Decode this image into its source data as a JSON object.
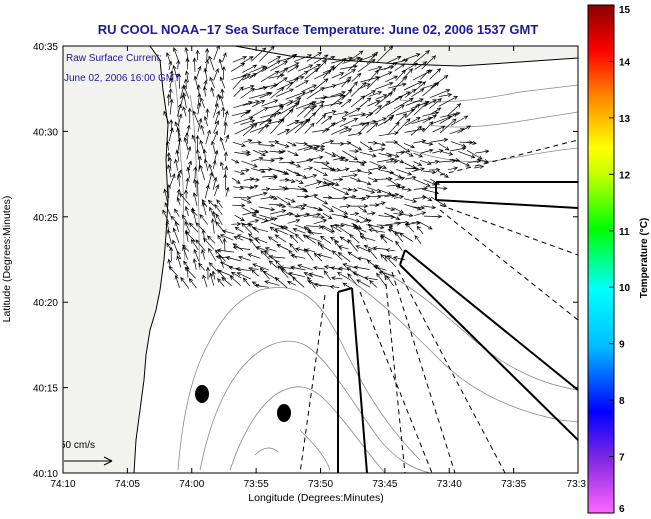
{
  "title": "RU COOL  NOAA−17  Sea Surface Temperature:  June 02, 2006 1537 GMT",
  "annotation": {
    "line1": "Raw Surface Current:",
    "line2": "June 02, 2006 16:00 GMT"
  },
  "scale": {
    "label": "50 cm/s"
  },
  "x_axis": {
    "label": "Longitude (Degrees:Minutes)",
    "ticks": [
      "74:10",
      "74:05",
      "74:00",
      "73:55",
      "73:50",
      "73:45",
      "73:40",
      "73:35",
      "73:3"
    ]
  },
  "y_axis": {
    "label": "Latitude (Degrees:Minutes)",
    "ticks": [
      "40:35",
      "40:30",
      "40:25",
      "40:20",
      "40:15",
      "40:10"
    ]
  },
  "colorbar": {
    "label": "Temperature (°C)",
    "ticks": [
      "15",
      "14",
      "13",
      "12",
      "11",
      "10",
      "9",
      "8",
      "7",
      "6"
    ],
    "colors": [
      "#8b0000",
      "#ff0000",
      "#ff8800",
      "#ffff00",
      "#00ff00",
      "#00ffff",
      "#0000ff",
      "#8a2be2",
      "#ff66ff"
    ]
  },
  "map": {
    "land_color": "#f2f2ee",
    "water_color": "#ffffff"
  }
}
